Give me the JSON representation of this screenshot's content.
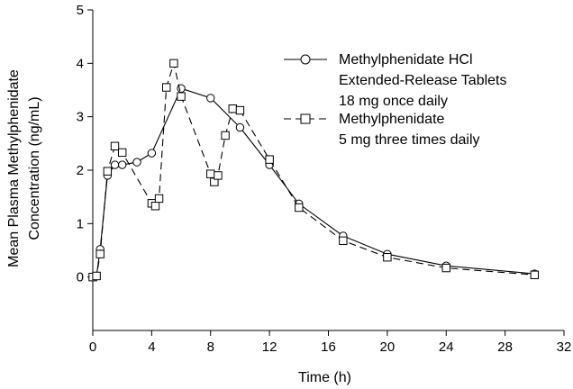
{
  "chart_data": {
    "type": "line",
    "xlabel": "Time (h)",
    "ylabel_lines": [
      "Mean Plasma Methylphenidate",
      "Concentration (ng/mL)"
    ],
    "xlim": [
      0,
      32
    ],
    "ylim": [
      -1,
      5
    ],
    "xticks": [
      0,
      4,
      8,
      12,
      16,
      20,
      24,
      28,
      32
    ],
    "yticks": [
      0,
      1,
      2,
      3,
      4,
      5
    ],
    "series": [
      {
        "name_lines": [
          "Methylphenidate HCl",
          "Extended-Release Tablets",
          "18 mg once daily"
        ],
        "marker": "circle",
        "dash": "solid",
        "x": [
          0,
          0.25,
          0.5,
          1,
          1.5,
          2,
          3,
          4,
          6,
          8,
          10,
          12,
          14,
          17,
          20,
          24,
          30
        ],
        "y": [
          0,
          0.02,
          0.52,
          1.9,
          2.1,
          2.1,
          2.15,
          2.32,
          3.53,
          3.35,
          2.8,
          2.1,
          1.37,
          0.77,
          0.43,
          0.21,
          0.06
        ]
      },
      {
        "name_lines": [
          "Methylphenidate",
          "5 mg three times daily"
        ],
        "marker": "square",
        "dash": "dashed",
        "x": [
          0,
          0.25,
          0.5,
          1,
          1.5,
          2,
          4,
          4.25,
          4.5,
          5,
          5.5,
          6,
          8,
          8.25,
          8.5,
          9,
          9.5,
          10,
          12,
          14,
          17,
          20,
          24,
          30
        ],
        "y": [
          0,
          0.02,
          0.43,
          1.98,
          2.45,
          2.33,
          1.38,
          1.33,
          1.47,
          3.55,
          4.0,
          3.38,
          1.93,
          1.78,
          1.9,
          2.65,
          3.15,
          3.12,
          2.2,
          1.3,
          0.68,
          0.37,
          0.17,
          0.04
        ]
      }
    ],
    "legend_placement": "top-right"
  },
  "style": {
    "line_color": "#000000",
    "background": "#ffffff"
  }
}
